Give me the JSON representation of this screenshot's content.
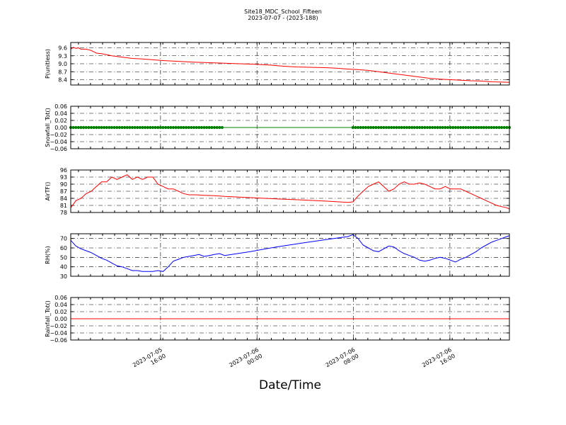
{
  "header": {
    "title": "Site18_MDC_School_Fifteen",
    "subtitle": "2023-07-07 - (2023-188)"
  },
  "xlabel": "Date/Time",
  "chart_data": [
    {
      "type": "line",
      "ylabel": "P(unitless)",
      "ylim": [
        8.2,
        9.8
      ],
      "yticks": [
        "8.4",
        "8.7",
        "9.0",
        "9.3",
        "9.6"
      ],
      "ytick_values": [
        8.4,
        8.7,
        9.0,
        9.3,
        9.6
      ],
      "color": "#ff0000",
      "marker": "none",
      "grid": true,
      "x": [
        0,
        0.5,
        1,
        1.5,
        2,
        3,
        4,
        5,
        6,
        8,
        10,
        12,
        14,
        16,
        18,
        20,
        22,
        24,
        27,
        30,
        33,
        36,
        39,
        40,
        42,
        44,
        46,
        48,
        50,
        52,
        54,
        56,
        58,
        60,
        62,
        64,
        66,
        68,
        70,
        72,
        74,
        76,
        78,
        80,
        82,
        84,
        85.5
      ],
      "y": [
        9.55,
        9.62,
        9.58,
        9.6,
        9.55,
        9.55,
        9.5,
        9.4,
        9.38,
        9.3,
        9.25,
        9.2,
        9.18,
        9.15,
        9.12,
        9.1,
        9.08,
        9.06,
        9.04,
        9.02,
        9.0,
        8.98,
        8.95,
        8.93,
        8.9,
        8.88,
        8.87,
        8.86,
        8.85,
        8.83,
        8.8,
        8.78,
        8.75,
        8.7,
        8.65,
        8.6,
        8.55,
        8.5,
        8.45,
        8.42,
        8.4,
        8.38,
        8.36,
        8.35,
        8.32,
        8.31,
        8.3
      ]
    },
    {
      "type": "line",
      "ylabel": "Snowfall_Tot()",
      "ylim": [
        -0.06,
        0.06
      ],
      "yticks": [
        "0.06",
        "0.04",
        "0.02",
        "0.00",
        "−0.02",
        "−0.04",
        "−0.06"
      ],
      "ytick_values": [
        0.06,
        0.04,
        0.02,
        0.0,
        -0.02,
        -0.04,
        -0.06
      ],
      "color": "#008000",
      "marker": "dot",
      "grid": true,
      "x": [
        0,
        29.5,
        55,
        85.5
      ],
      "y": [
        0,
        0,
        0,
        0
      ],
      "marker_ranges": [
        [
          0,
          29.5
        ],
        [
          55,
          85.5
        ]
      ]
    },
    {
      "type": "line",
      "ylabel": "AirTF()",
      "ylim": [
        78,
        96
      ],
      "yticks": [
        "78",
        "81",
        "84",
        "87",
        "90",
        "93",
        "96"
      ],
      "ytick_values": [
        78,
        81,
        84,
        87,
        90,
        93,
        96
      ],
      "color": "#ff0000",
      "marker": "none",
      "grid": true,
      "x": [
        0,
        1,
        2,
        3,
        4,
        5,
        6,
        7,
        8,
        9,
        10,
        11,
        12,
        13,
        14,
        15,
        16,
        17,
        18,
        19,
        20,
        21,
        22,
        23,
        24,
        25,
        26,
        27,
        28,
        29,
        30,
        35,
        40,
        45,
        50,
        54,
        55,
        56,
        57,
        58,
        59,
        60,
        61,
        62,
        63,
        64,
        65,
        66,
        67,
        68,
        69,
        70,
        71,
        72,
        73,
        74,
        75,
        76,
        77,
        78,
        79,
        80,
        81,
        82,
        83,
        84,
        85,
        85.5
      ],
      "y": [
        80,
        83,
        84,
        86,
        87,
        89,
        91,
        91,
        93,
        92,
        93,
        94,
        92,
        93,
        92,
        93,
        93,
        90,
        89,
        88,
        88,
        87,
        86,
        85.5,
        85.5,
        85.4,
        85.3,
        85.2,
        85.1,
        85.0,
        84.8,
        84.3,
        83.8,
        83.3,
        82.8,
        82.3,
        82.5,
        85,
        87,
        89,
        90,
        91,
        89,
        87,
        88,
        90,
        91,
        90,
        90,
        90.5,
        90,
        89,
        88,
        88,
        89,
        88,
        88,
        88,
        87,
        86,
        85,
        84,
        83,
        82,
        81,
        80.5,
        80,
        79.5
      ]
    },
    {
      "type": "line",
      "ylabel": "RH(%)",
      "ylim": [
        30,
        75
      ],
      "yticks": [
        "30",
        "40",
        "50",
        "60",
        "70"
      ],
      "ytick_values": [
        30,
        40,
        50,
        60,
        70
      ],
      "color": "#0000ff",
      "marker": "none",
      "grid": true,
      "x": [
        0,
        1,
        2,
        3,
        4,
        5,
        6,
        7,
        8,
        9,
        10,
        11,
        12,
        13,
        14,
        15,
        16,
        17,
        18,
        19,
        20,
        21,
        22,
        23,
        24,
        25,
        26,
        27,
        28,
        29,
        30,
        35,
        40,
        45,
        50,
        54,
        55,
        56,
        57,
        58,
        59,
        60,
        61,
        62,
        63,
        64,
        65,
        66,
        67,
        68,
        69,
        70,
        71,
        72,
        73,
        74,
        75,
        76,
        77,
        78,
        79,
        80,
        81,
        82,
        83,
        84,
        85,
        85.5
      ],
      "y": [
        68,
        62,
        59,
        57,
        55,
        52,
        49,
        47,
        44,
        41,
        40,
        38,
        36,
        36,
        35,
        35,
        35,
        36,
        35,
        40,
        46,
        48,
        50,
        51,
        52,
        53,
        51,
        52,
        53,
        54,
        52,
        56,
        61,
        65,
        69,
        72,
        74,
        70,
        63,
        60,
        57,
        56,
        59,
        62,
        61,
        57,
        54,
        52,
        50,
        47,
        46,
        47,
        49,
        50,
        49,
        47,
        45,
        48,
        50,
        53,
        56,
        60,
        63,
        66,
        68,
        70,
        72,
        73
      ]
    },
    {
      "type": "line",
      "ylabel": "Rainfall_Tot()",
      "ylim": [
        -0.06,
        0.06
      ],
      "yticks": [
        "0.06",
        "0.04",
        "0.02",
        "0.00",
        "−0.02",
        "−0.04",
        "−0.06"
      ],
      "ytick_values": [
        0.06,
        0.04,
        0.02,
        0.0,
        -0.02,
        -0.04,
        -0.06
      ],
      "color": "#ff0000",
      "marker": "none",
      "grid": true,
      "x": [
        0,
        85.5
      ],
      "y": [
        0,
        0
      ]
    }
  ],
  "xaxis": {
    "range_hours": [
      0,
      85.5
    ],
    "ticks": [
      {
        "line1": "2023-07-05",
        "line2": "16:00",
        "value": 17.5
      },
      {
        "line1": "2023-07-06",
        "line2": "00:00",
        "value": 36.3
      },
      {
        "line1": "2023-07-06",
        "line2": "08:00",
        "value": 55.1
      },
      {
        "line1": "2023-07-06",
        "line2": "16:00",
        "value": 73.9
      }
    ]
  }
}
